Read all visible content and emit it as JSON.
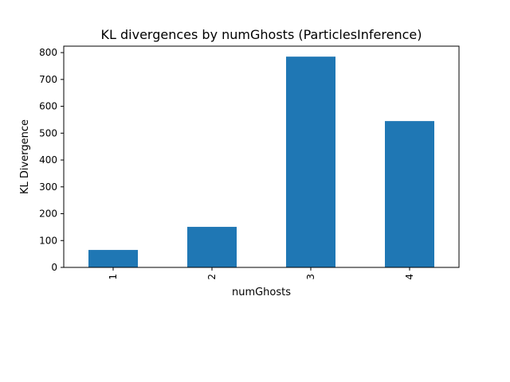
{
  "chart_data": {
    "type": "bar",
    "title": "KL divergences by numGhosts (ParticlesInference)",
    "xlabel": "numGhosts",
    "ylabel": "KL Divergence",
    "categories": [
      "1",
      "2",
      "3",
      "4"
    ],
    "values": [
      65,
      151,
      785,
      545
    ],
    "ylim": [
      0,
      824
    ],
    "yticks": [
      0,
      100,
      200,
      300,
      400,
      500,
      600,
      700,
      800
    ],
    "bar_color": "#1f77b4",
    "grid": false,
    "legend": "none",
    "xtick_rotation": "vertical"
  }
}
